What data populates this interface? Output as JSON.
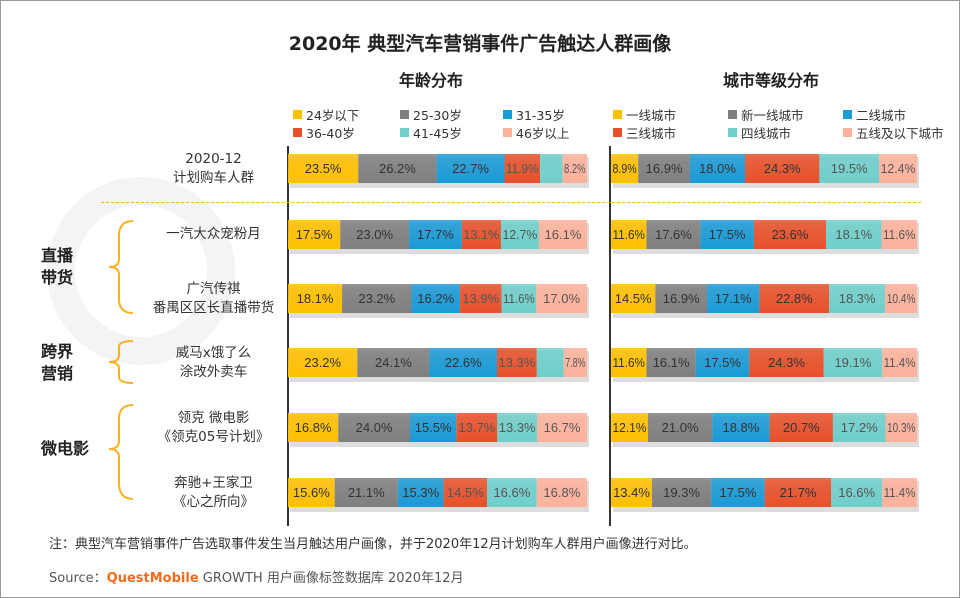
{
  "chart_data": [
    {
      "type": "bar",
      "stacked": true,
      "orientation": "horizontal",
      "title": "年龄分布",
      "categories": [
        "2020-12 计划购车人群",
        "一汽大众宠粉月",
        "广汽传祺 番禺区区长直播带货",
        "威马x饿了么 涂改外卖车",
        "领克 微电影 《领克05号计划》",
        "奔驰+王家卫 《心之所向》"
      ],
      "series": [
        {
          "name": "24岁以下",
          "color": "#FFC000",
          "values": [
            23.5,
            17.5,
            18.1,
            23.2,
            16.8,
            15.6
          ]
        },
        {
          "name": "25-30岁",
          "color": "#7F7F7F",
          "values": [
            26.2,
            23.0,
            23.2,
            24.1,
            24.0,
            21.1
          ]
        },
        {
          "name": "31-35岁",
          "color": "#1A9AD6",
          "values": [
            22.7,
            17.7,
            16.2,
            22.6,
            15.5,
            15.3
          ]
        },
        {
          "name": "36-40岁",
          "color": "#E8502A",
          "values": [
            11.9,
            13.1,
            13.9,
            13.3,
            13.7,
            14.5
          ]
        },
        {
          "name": "41-45岁",
          "color": "#6FCFCB",
          "values": [
            7.5,
            12.7,
            11.6,
            9.0,
            13.3,
            16.6
          ],
          "labels_shown": [
            false,
            true,
            true,
            false,
            true,
            true
          ]
        },
        {
          "name": "46岁以上",
          "color": "#FDB29C",
          "values": [
            8.2,
            16.1,
            17.0,
            7.8,
            16.7,
            16.8
          ]
        }
      ]
    },
    {
      "type": "bar",
      "stacked": true,
      "orientation": "horizontal",
      "title": "城市等级分布",
      "series": [
        {
          "name": "一线城市",
          "color": "#FFC000",
          "values": [
            8.9,
            11.6,
            14.5,
            11.6,
            12.1,
            13.4
          ]
        },
        {
          "name": "新一线城市",
          "color": "#7F7F7F",
          "values": [
            16.9,
            17.6,
            16.9,
            16.1,
            21.0,
            19.3
          ]
        },
        {
          "name": "二线城市",
          "color": "#1A9AD6",
          "values": [
            18.0,
            17.5,
            17.1,
            17.5,
            18.8,
            17.5
          ]
        },
        {
          "name": "三线城市",
          "color": "#E8502A",
          "values": [
            24.3,
            23.6,
            22.8,
            24.3,
            20.7,
            21.7
          ]
        },
        {
          "name": "四线城市",
          "color": "#6FCFCB",
          "values": [
            19.5,
            18.1,
            18.3,
            19.1,
            17.2,
            16.6
          ]
        },
        {
          "name": "五线及以下城市",
          "color": "#FDB29C",
          "values": [
            12.4,
            11.6,
            10.4,
            11.4,
            10.3,
            11.4
          ]
        }
      ]
    }
  ],
  "title": "2020年 典型汽车营销事件广告触达人群画像",
  "rows": [
    {
      "l1": "2020-12",
      "l2": "计划购车人群"
    },
    {
      "l1": "一汽大众宠粉月",
      "l2": ""
    },
    {
      "l1": "广汽传祺",
      "l2": "番禺区区长直播带货"
    },
    {
      "l1": "威马x饿了么",
      "l2": "涂改外卖车"
    },
    {
      "l1": "领克 微电影",
      "l2": "《领克05号计划》"
    },
    {
      "l1": "奔驰+王家卫",
      "l2": "《心之所向》"
    }
  ],
  "groups": [
    {
      "l1": "直播",
      "l2": "带货"
    },
    {
      "l1": "跨界",
      "l2": "营销"
    },
    {
      "l1": "微电影",
      "l2": ""
    }
  ],
  "watermark": "QUESTMOBILE",
  "note": "注：典型汽车营销事件广告选取事件发生当月触达用户画像，并于2020年12月计划购车人群用户画像进行对比。",
  "source": {
    "prefix": "Source：",
    "brand": "QuestMobile",
    "rest": " GROWTH 用户画像标签数据库 2020年12月"
  }
}
